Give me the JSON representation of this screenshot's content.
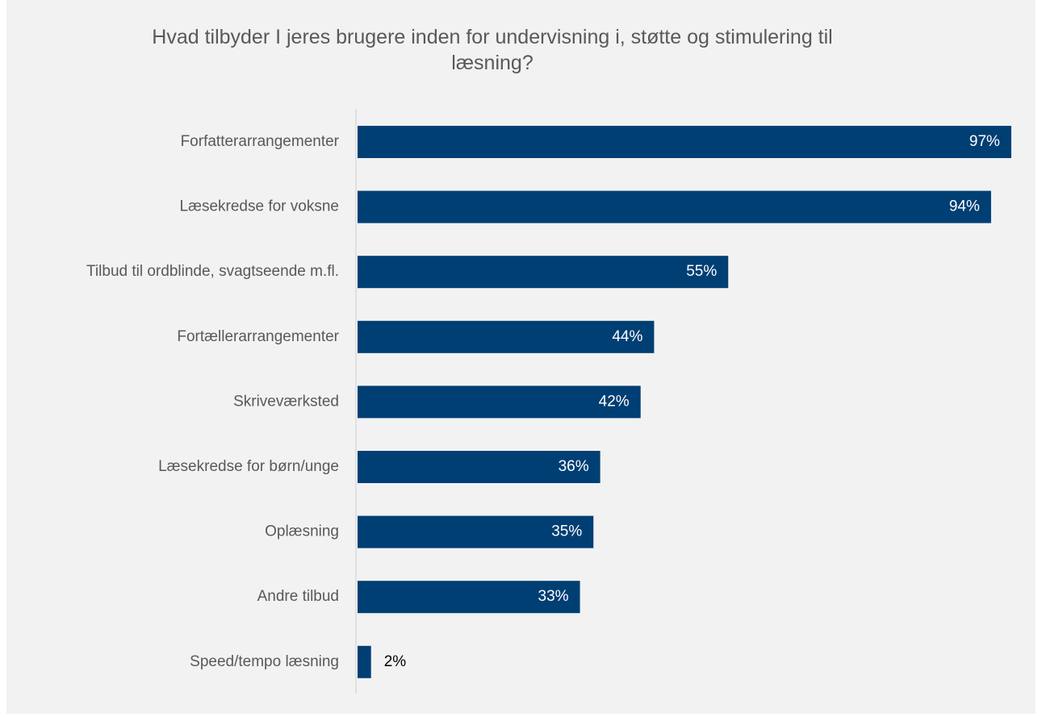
{
  "chart_data": {
    "type": "barh",
    "title": "Hvad tilbyder I jeres brugere inden for undervisning i, støtte og stimulering til læsning?",
    "categories": [
      "Forfatterarrangementer",
      "Læsekredse for voksne",
      "Tilbud til ordblinde, svagtseende m.fl.",
      "Fortællerarrangementer",
      "Skriveværksted",
      "Læsekredse for børn/unge",
      "Oplæsning",
      "Andre tilbud",
      "Speed/tempo læsning"
    ],
    "values": [
      97,
      94,
      55,
      44,
      42,
      36,
      35,
      33,
      2
    ],
    "value_labels": [
      "97%",
      "94%",
      "55%",
      "44%",
      "42%",
      "36%",
      "35%",
      "33%",
      "2%"
    ],
    "color": "#003f74",
    "xlim": [
      0,
      100
    ]
  }
}
